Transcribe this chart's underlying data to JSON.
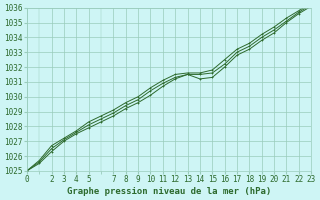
{
  "title": "Graphe pression niveau de la mer (hPa)",
  "background_color": "#cef5f5",
  "plot_bg_color": "#cef5f5",
  "grid_color": "#99ccbb",
  "line_color": "#2d6a2d",
  "marker_color": "#2d6a2d",
  "x_values": [
    0,
    1,
    2,
    3,
    4,
    5,
    6,
    7,
    8,
    9,
    10,
    11,
    12,
    13,
    14,
    15,
    16,
    17,
    18,
    19,
    20,
    21,
    22,
    23
  ],
  "y_series1": [
    1025.0,
    1025.5,
    1026.3,
    1027.0,
    1027.5,
    1027.9,
    1028.3,
    1028.7,
    1029.2,
    1029.6,
    1030.1,
    1030.7,
    1031.2,
    1031.5,
    1031.2,
    1031.3,
    1032.0,
    1032.8,
    1033.2,
    1033.8,
    1034.3,
    1035.0,
    1035.6,
    1036.1
  ],
  "y_series2": [
    1025.0,
    1025.6,
    1026.5,
    1027.1,
    1027.6,
    1028.1,
    1028.5,
    1028.9,
    1029.4,
    1029.8,
    1030.4,
    1030.9,
    1031.3,
    1031.5,
    1031.5,
    1031.6,
    1032.2,
    1033.0,
    1033.4,
    1034.0,
    1034.5,
    1035.1,
    1035.7,
    1036.2
  ],
  "y_series3": [
    1025.0,
    1025.7,
    1026.7,
    1027.2,
    1027.7,
    1028.3,
    1028.7,
    1029.1,
    1029.6,
    1030.0,
    1030.6,
    1031.1,
    1031.5,
    1031.6,
    1031.6,
    1031.8,
    1032.5,
    1033.2,
    1033.6,
    1034.2,
    1034.7,
    1035.3,
    1035.8,
    1036.3
  ],
  "ylim": [
    1025,
    1036
  ],
  "xlim": [
    0,
    23
  ],
  "yticks": [
    1025,
    1026,
    1027,
    1028,
    1029,
    1030,
    1031,
    1032,
    1033,
    1034,
    1035,
    1036
  ],
  "xticks": [
    0,
    2,
    3,
    4,
    5,
    7,
    8,
    9,
    10,
    11,
    12,
    13,
    14,
    15,
    16,
    17,
    18,
    19,
    20,
    21,
    22,
    23
  ],
  "xlabel_fontsize": 5.5,
  "ylabel_fontsize": 5.5,
  "title_fontsize": 6.5,
  "line_width": 0.7,
  "marker_size": 2.0
}
